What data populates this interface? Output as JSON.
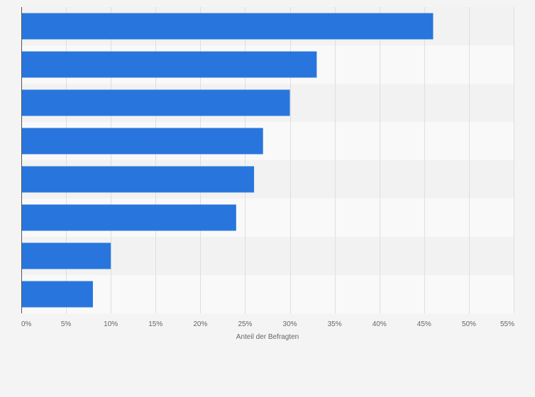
{
  "chart_data": {
    "type": "bar",
    "orientation": "horizontal",
    "categories": [
      "",
      "",
      "",
      "",
      "",
      "",
      "",
      ""
    ],
    "values": [
      46,
      33,
      30,
      27,
      26,
      24,
      10,
      8
    ],
    "value_unit": "%",
    "xlabel": "Anteil der Befragten",
    "ylabel": "",
    "xlim": [
      0,
      55
    ],
    "x_ticks": [
      0,
      5,
      10,
      15,
      20,
      25,
      30,
      35,
      40,
      45,
      50,
      55
    ],
    "x_tick_labels": [
      "0%",
      "5%",
      "10%",
      "15%",
      "20%",
      "25%",
      "30%",
      "35%",
      "40%",
      "45%",
      "50%",
      "55%"
    ],
    "grid": true,
    "legend": "none",
    "colors": {
      "bar": "#2876dd",
      "band_dark": "#f2f2f2",
      "band_light": "#f9f9f9",
      "grid": "#dedede",
      "axis": "#555555",
      "background": "#f4f4f4"
    }
  }
}
